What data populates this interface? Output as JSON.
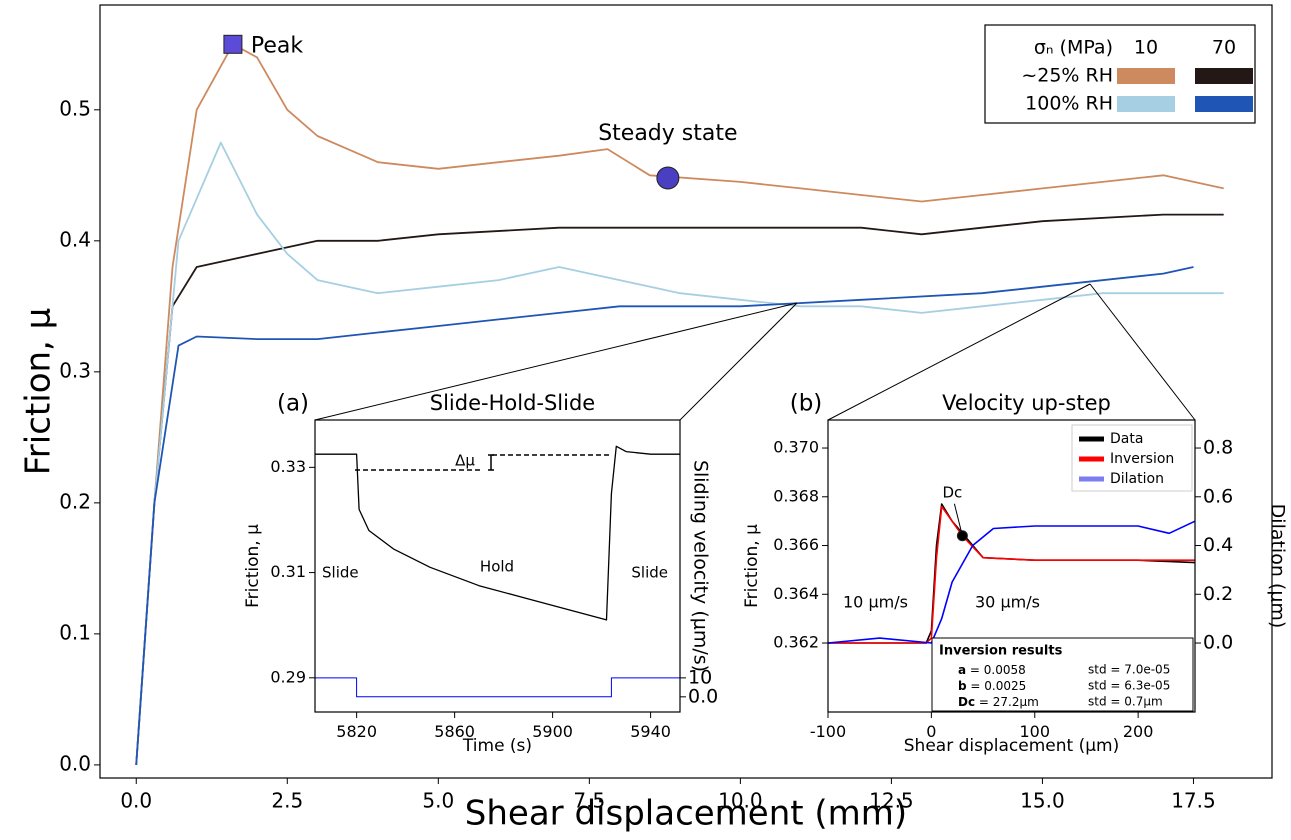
{
  "chart_data": [
    {
      "type": "line",
      "xlabel": "Shear displacement (mm)",
      "ylabel": "Friction, μ",
      "xlim": [
        -0.6,
        18.8
      ],
      "ylim": [
        -0.01,
        0.58
      ],
      "xticks": [
        {
          "value": 0,
          "label": "0.0"
        },
        2.5,
        {
          "value": 5,
          "label": "5.0"
        },
        7.5,
        {
          "value": 10,
          "label": "10.0"
        },
        12.5,
        {
          "value": 15,
          "label": "15.0"
        },
        17.5
      ],
      "yticks": [
        {
          "value": 0,
          "label": "0.0"
        },
        0.1,
        0.2,
        0.3,
        0.4,
        0.5
      ],
      "series": [
        {
          "color": "#cd8a5e",
          "x": [
            0,
            0.3,
            0.6,
            1,
            1.6,
            2,
            2.5,
            3,
            3.5,
            4,
            5,
            6,
            7,
            7.8,
            8.5,
            10,
            11,
            12,
            13,
            14,
            15,
            16,
            17,
            18
          ],
          "values": [
            0,
            0.2,
            0.38,
            0.5,
            0.55,
            0.54,
            0.5,
            0.48,
            0.47,
            0.46,
            0.455,
            0.46,
            0.465,
            0.47,
            0.45,
            0.445,
            0.44,
            0.435,
            0.43,
            0.435,
            0.44,
            0.445,
            0.45,
            0.44
          ]
        },
        {
          "color": "#231815",
          "x": [
            0,
            0.3,
            0.6,
            1,
            2,
            3,
            4,
            5,
            7,
            8,
            10,
            12,
            13,
            14,
            15,
            17,
            18
          ],
          "values": [
            0,
            0.2,
            0.35,
            0.38,
            0.39,
            0.4,
            0.4,
            0.405,
            0.41,
            0.41,
            0.41,
            0.41,
            0.405,
            0.41,
            0.415,
            0.42,
            0.42
          ]
        },
        {
          "color": "#a6cfe3",
          "x": [
            0,
            0.3,
            0.7,
            1.4,
            2,
            2.5,
            3,
            4,
            5,
            6,
            7,
            8,
            9,
            10,
            11,
            12,
            13,
            14,
            15,
            16,
            17,
            18
          ],
          "values": [
            0,
            0.2,
            0.4,
            0.475,
            0.42,
            0.39,
            0.37,
            0.36,
            0.365,
            0.37,
            0.38,
            0.37,
            0.36,
            0.355,
            0.35,
            0.35,
            0.345,
            0.35,
            0.355,
            0.36,
            0.36,
            0.36
          ]
        },
        {
          "color": "#1f55b5",
          "x": [
            0,
            0.3,
            0.7,
            1,
            2,
            3,
            4,
            5,
            6,
            7,
            8,
            10,
            12,
            14,
            15,
            17,
            17.5
          ],
          "values": [
            0,
            0.2,
            0.32,
            0.327,
            0.325,
            0.325,
            0.33,
            0.335,
            0.34,
            0.345,
            0.35,
            0.35,
            0.355,
            0.36,
            0.365,
            0.375,
            0.38
          ]
        }
      ],
      "points": [
        {
          "text": "Peak",
          "x": 1.6,
          "y": 0.55,
          "marker": "square",
          "color": "#5b4bd6"
        },
        {
          "text": "Steady state",
          "x": 8.8,
          "y": 0.448,
          "marker": "circle",
          "color": "#4a3fc0"
        }
      ],
      "legend": {
        "header": "σₙ (MPa)",
        "columns": [
          "10",
          "70"
        ],
        "rows": [
          "~25% RH",
          "100% RH"
        ]
      }
    },
    {
      "type": "line",
      "panel_label": "(a)",
      "title": "Slide-Hold-Slide",
      "xlabel": "Time (s)",
      "ylabel": "Friction, μ",
      "y2label": "Sliding velocity (μm/s)",
      "y2_color": "#0000ff",
      "xlim": [
        5803,
        5952
      ],
      "ylim": [
        0.2835,
        0.339
      ],
      "y2lim": [
        -8,
        146
      ],
      "xticks": [
        5820,
        5860,
        5900,
        5940
      ],
      "yticks": [
        0.29,
        0.31,
        0.33
      ],
      "y2ticks": [
        {
          "value": 0,
          "label": "0.0"
        },
        10
      ],
      "series": [
        {
          "color": "#000000",
          "x": [
            5803,
            5820,
            5821,
            5825,
            5835,
            5850,
            5870,
            5890,
            5910,
            5922,
            5924,
            5926,
            5930,
            5940,
            5952
          ],
          "values": [
            0.3325,
            0.3325,
            0.322,
            0.318,
            0.3145,
            0.311,
            0.3075,
            0.305,
            0.3025,
            0.301,
            0.325,
            0.334,
            0.333,
            0.3325,
            0.3325
          ]
        },
        {
          "color": "#0000ff",
          "axis": "y2",
          "x": [
            5803,
            5820,
            5820,
            5924,
            5924,
            5952
          ],
          "values": [
            10,
            10,
            0,
            0,
            10,
            10
          ]
        }
      ],
      "notes": [
        "Δμ",
        "Slide",
        "Hold",
        "Slide"
      ]
    },
    {
      "type": "line",
      "panel_label": "(b)",
      "title": "Velocity up-step",
      "xlabel": "Shear displacement (μm)",
      "ylabel": "Friction, μ",
      "y2label": "Dilation (μm)",
      "y2_color": "#0000ff",
      "xlim": [
        -100,
        255
      ],
      "ylim": [
        0.35917,
        0.37115
      ],
      "y2lim": [
        -0.283,
        0.915
      ],
      "xticks": [
        -100,
        0,
        100,
        200
      ],
      "yticks": [
        0.362,
        0.364,
        0.366,
        0.368,
        {
          "value": 0.37,
          "label": "0.370"
        }
      ],
      "y2ticks": [
        {
          "value": 0,
          "label": "0.0"
        },
        0.2,
        0.4,
        0.6,
        0.8
      ],
      "series": [
        {
          "name": "Data",
          "color": "#000000",
          "x": [
            -100,
            -50,
            -5,
            0,
            5,
            10,
            20,
            30,
            50,
            100,
            150,
            200,
            255
          ],
          "values": [
            0.362,
            0.362,
            0.362,
            0.3625,
            0.366,
            0.3677,
            0.367,
            0.3665,
            0.3655,
            0.3654,
            0.3654,
            0.3654,
            0.3653
          ]
        },
        {
          "name": "Inversion",
          "color": "#ff0000",
          "x": [
            -100,
            -50,
            -5,
            0,
            5,
            10,
            20,
            30,
            50,
            100,
            150,
            200,
            255
          ],
          "values": [
            0.362,
            0.362,
            0.362,
            0.3622,
            0.3655,
            0.3676,
            0.367,
            0.3664,
            0.3655,
            0.3654,
            0.3654,
            0.3654,
            0.3654
          ]
        },
        {
          "name": "Dilation",
          "color": "#0000ff",
          "legend_color": "#7d7df0",
          "axis": "y2",
          "x": [
            -100,
            -50,
            0,
            10,
            20,
            40,
            60,
            100,
            150,
            200,
            230,
            255
          ],
          "values": [
            0,
            0.02,
            0,
            0.1,
            0.25,
            0.4,
            0.47,
            0.48,
            0.48,
            0.48,
            0.45,
            0.5
          ]
        }
      ],
      "points": [
        {
          "text": "Dc",
          "x": 30,
          "y": 0.3664,
          "marker": "circle",
          "color": "#000000"
        }
      ],
      "notes": [
        "10 μm/s",
        "30 μm/s"
      ],
      "inversion_results": {
        "title": "Inversion results",
        "rows": [
          {
            "name": "a",
            "value": " = 0.0058",
            "std": "std = 7.0e-05"
          },
          {
            "name": "b",
            "value": " = 0.0025",
            "std": "std = 6.3e-05"
          },
          {
            "name": "Dc",
            "value": " = 27.2μm",
            "std": "std = 0.7μm"
          }
        ]
      }
    }
  ]
}
